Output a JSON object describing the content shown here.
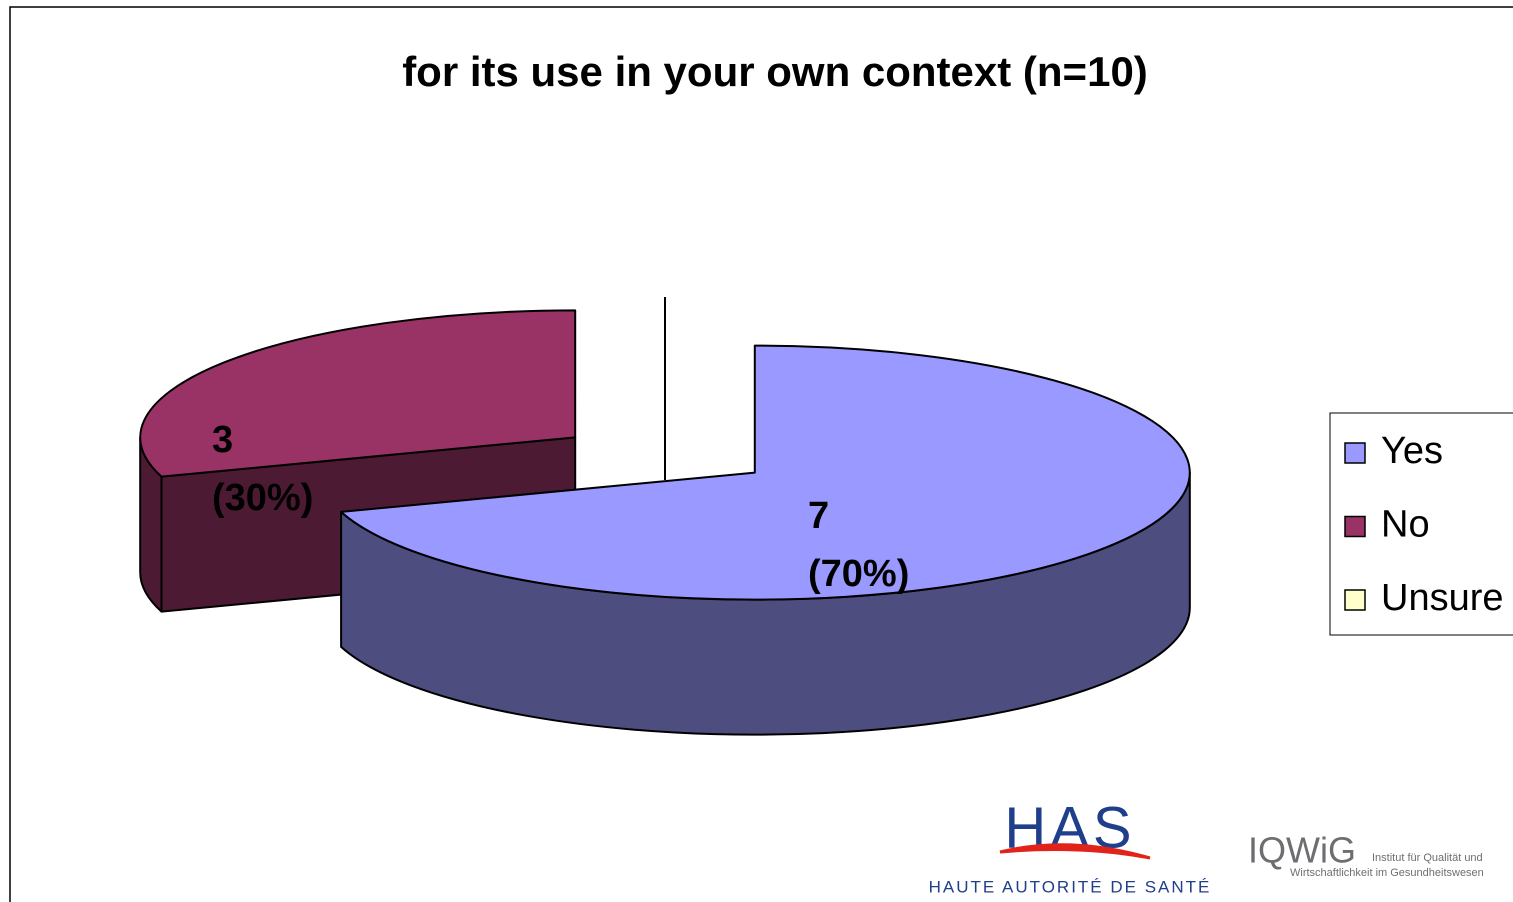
{
  "chart_data": {
    "type": "pie",
    "title": "for its use in your own context (n=10)",
    "categories": [
      "Yes",
      "No",
      "Unsure"
    ],
    "values": [
      7,
      3,
      0
    ],
    "value_labels": [
      [
        "7",
        "(70%)"
      ],
      [
        "3",
        "(30%)"
      ],
      null
    ],
    "colors": [
      "#9999ff",
      "#993366",
      "#ffffcc"
    ],
    "side_colors": [
      "#4d4d80",
      "#4d1a33",
      "#80806a"
    ],
    "legend": "right",
    "three_d": true,
    "exploded": true
  },
  "logos": {
    "has": "HAS",
    "has_caption": "HAUTE AUTORITÉ DE SANTÉ",
    "iqwig": "IQWiG",
    "iqwig_caption": [
      "Institut für Qualität und",
      "Wirtschaftlichkeit im Gesundheitswesen"
    ]
  }
}
